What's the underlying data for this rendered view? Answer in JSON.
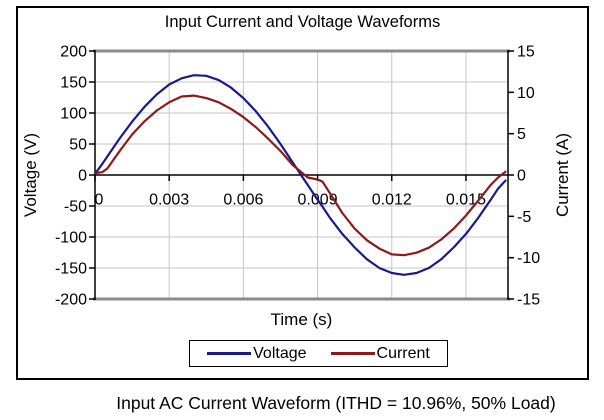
{
  "figure": {
    "caption": "Input AC Current Waveform (ITHD = 10.96%, 50% Load)"
  },
  "chart_data": {
    "type": "line",
    "title": "Input Current and Voltage Waveforms",
    "xlabel": "Time (s)",
    "ylabel_left": "Voltage (V)",
    "ylabel_right": "Current (A)",
    "xlim": [
      0,
      0.0167
    ],
    "ylim_left": [
      -200,
      200
    ],
    "ylim_right": [
      -15,
      15
    ],
    "x_ticks": [
      0,
      0.003,
      0.006,
      0.009,
      0.012,
      0.015
    ],
    "x_tick_labels": [
      "0",
      "0.003",
      "0.006",
      "0.009",
      "0.012",
      "0.015"
    ],
    "y_left_ticks": [
      200,
      150,
      100,
      50,
      0,
      -50,
      -100,
      -150,
      -200
    ],
    "y_left_tick_labels": [
      "200",
      "150",
      "100",
      "50",
      "0",
      "-50",
      "-100",
      "-150",
      "-200"
    ],
    "y_right_ticks": [
      15,
      10,
      5,
      0,
      -5,
      -10,
      -15
    ],
    "y_right_tick_labels": [
      "15",
      "10",
      "5",
      "0",
      "-5",
      "-10",
      "-15"
    ],
    "grid": true,
    "legend_position": "bottom",
    "x": [
      0,
      0.0003,
      0.0005,
      0.001,
      0.0015,
      0.002,
      0.0025,
      0.003,
      0.0035,
      0.004,
      0.0045,
      0.005,
      0.0055,
      0.006,
      0.0065,
      0.007,
      0.0075,
      0.008,
      0.0082,
      0.0084,
      0.0086,
      0.009,
      0.0092,
      0.0095,
      0.01,
      0.0105,
      0.011,
      0.0115,
      0.012,
      0.0125,
      0.013,
      0.0135,
      0.014,
      0.0145,
      0.015,
      0.0155,
      0.016,
      0.0163,
      0.0166
    ],
    "series": [
      {
        "name": "Voltage",
        "axis": "left",
        "color": "#1a1a8c",
        "peak": 161,
        "values": [
          2,
          18,
          30,
          59,
          86,
          110,
          130,
          146,
          156,
          161,
          160,
          153,
          141,
          124,
          103,
          78,
          50,
          20,
          8,
          -4,
          -16,
          -40,
          -51,
          -69,
          -95,
          -117,
          -136,
          -150,
          -158,
          -161,
          -158,
          -150,
          -136,
          -117,
          -95,
          -69,
          -40,
          -22,
          -9
        ]
      },
      {
        "name": "Current",
        "axis": "right",
        "color": "#8c1a1a",
        "peak": 9.7,
        "values": [
          0.2,
          0.35,
          0.8,
          2.9,
          4.9,
          6.5,
          7.8,
          8.8,
          9.5,
          9.6,
          9.3,
          8.8,
          8.0,
          7.0,
          5.8,
          4.4,
          2.9,
          1.2,
          0.7,
          0.2,
          -0.3,
          -0.55,
          -0.8,
          -2.2,
          -4.6,
          -6.5,
          -7.9,
          -8.9,
          -9.6,
          -9.7,
          -9.4,
          -8.8,
          -7.8,
          -6.5,
          -4.9,
          -3.1,
          -1.2,
          -0.3,
          0.4
        ]
      }
    ]
  }
}
